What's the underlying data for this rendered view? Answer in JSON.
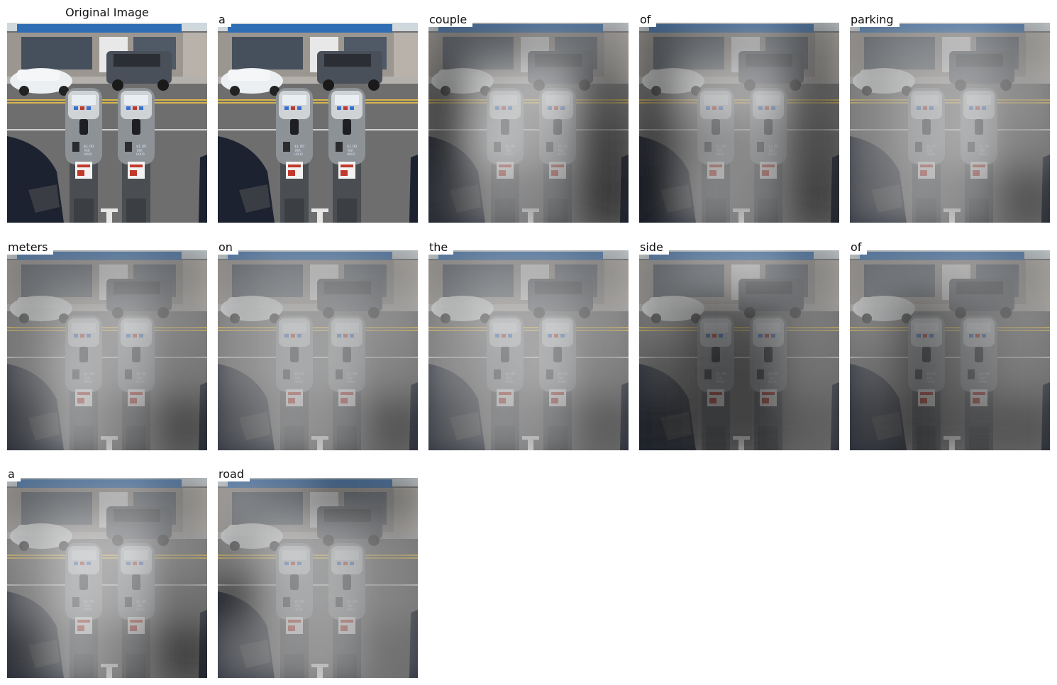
{
  "original_title": "Original Image",
  "caption_words": [
    "a",
    "couple",
    "of",
    "parking",
    "meters",
    "on",
    "the",
    "side",
    "of",
    "a",
    "road"
  ],
  "scene": {
    "meter_left": {
      "price": "$1.00",
      "unit": "PER",
      "period": "HOUR"
    },
    "meter_right": {
      "price": "$1.00",
      "unit": "PER",
      "period": "HOUR"
    },
    "colors": {
      "awning": "#2f6db5",
      "road": "#6e6e6e",
      "lane_line": "#d9b64a",
      "meter_body": "#9aa0a6",
      "sky": "#cfd8dc"
    }
  },
  "attention": {
    "a": {
      "brightness": [
        [
          0.0
        ]
      ]
    },
    "couple": {
      "brightness": [
        [
          0.35,
          0.4,
          0.5,
          0.45
        ],
        [
          0.2,
          0.75,
          0.8,
          0.3
        ],
        [
          0.2,
          0.8,
          0.7,
          0.2
        ],
        [
          0.25,
          0.6,
          0.55,
          0.15
        ]
      ]
    },
    "of": {
      "brightness": [
        [
          0.3,
          0.45,
          0.55,
          0.35
        ],
        [
          0.25,
          0.7,
          0.75,
          0.3
        ],
        [
          0.15,
          0.55,
          0.6,
          0.25
        ],
        [
          0.1,
          0.6,
          0.55,
          0.2
        ]
      ]
    },
    "parking": {
      "brightness": [
        [
          0.5,
          0.6,
          0.65,
          0.5
        ],
        [
          0.55,
          0.7,
          0.75,
          0.6
        ],
        [
          0.55,
          0.7,
          0.75,
          0.55
        ],
        [
          0.5,
          0.65,
          0.6,
          0.3
        ]
      ]
    },
    "meters": {
      "brightness": [
        [
          0.45,
          0.5,
          0.55,
          0.45
        ],
        [
          0.5,
          0.7,
          0.75,
          0.55
        ],
        [
          0.5,
          0.75,
          0.7,
          0.5
        ],
        [
          0.35,
          0.7,
          0.55,
          0.25
        ]
      ]
    },
    "on": {
      "brightness": [
        [
          0.5,
          0.6,
          0.6,
          0.5
        ],
        [
          0.6,
          0.7,
          0.7,
          0.6
        ],
        [
          0.6,
          0.7,
          0.7,
          0.55
        ],
        [
          0.45,
          0.65,
          0.6,
          0.3
        ]
      ]
    },
    "the": {
      "brightness": [
        [
          0.5,
          0.6,
          0.6,
          0.5
        ],
        [
          0.6,
          0.75,
          0.75,
          0.6
        ],
        [
          0.6,
          0.7,
          0.75,
          0.55
        ],
        [
          0.45,
          0.65,
          0.6,
          0.35
        ]
      ]
    },
    "side": {
      "brightness": [
        [
          0.45,
          0.6,
          0.65,
          0.45
        ],
        [
          0.45,
          0.25,
          0.3,
          0.5
        ],
        [
          0.3,
          0.2,
          0.2,
          0.45
        ],
        [
          0.15,
          0.2,
          0.2,
          0.35
        ]
      ]
    },
    "of_2": {
      "brightness": [
        [
          0.5,
          0.55,
          0.6,
          0.5
        ],
        [
          0.55,
          0.3,
          0.45,
          0.55
        ],
        [
          0.45,
          0.25,
          0.4,
          0.5
        ],
        [
          0.3,
          0.2,
          0.3,
          0.3
        ]
      ]
    },
    "a_2": {
      "brightness": [
        [
          0.45,
          0.55,
          0.6,
          0.45
        ],
        [
          0.6,
          0.8,
          0.8,
          0.55
        ],
        [
          0.55,
          0.8,
          0.75,
          0.45
        ],
        [
          0.3,
          0.7,
          0.55,
          0.2
        ]
      ]
    },
    "road": {
      "brightness": [
        [
          0.6,
          0.5,
          0.3,
          0.35
        ],
        [
          0.55,
          0.75,
          0.7,
          0.55
        ],
        [
          0.2,
          0.7,
          0.7,
          0.55
        ],
        [
          0.5,
          0.65,
          0.65,
          0.45
        ]
      ]
    }
  }
}
